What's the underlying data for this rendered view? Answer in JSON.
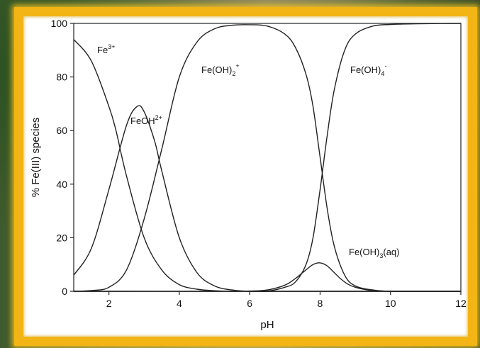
{
  "chart_data": {
    "type": "line",
    "title": "",
    "xlabel": "pH",
    "ylabel": "% Fe(III) species",
    "xlim": [
      1,
      12
    ],
    "ylim": [
      0,
      100
    ],
    "x_ticks": [
      2,
      4,
      6,
      8,
      10,
      12
    ],
    "y_ticks": [
      0,
      20,
      40,
      60,
      80,
      100
    ],
    "grid": false,
    "legend": "none",
    "series": [
      {
        "name": "Fe3+",
        "label_base": "Fe",
        "label_sup": "3+",
        "label_tail": "",
        "x": [
          1.0,
          1.5,
          2.0,
          2.2,
          2.5,
          3.0,
          3.5,
          4.0,
          4.5,
          5.0,
          5.5,
          6.0,
          7.0,
          8.0,
          9.0,
          10.0,
          11.0,
          12.0
        ],
        "y": [
          94,
          86,
          69,
          60,
          43,
          20,
          8,
          2.5,
          0.8,
          0.2,
          0,
          0,
          0,
          0,
          0,
          0,
          0,
          0
        ]
      },
      {
        "name": "FeOH2+",
        "label_base": "FeOH",
        "label_sup": "2+",
        "label_tail": "",
        "x": [
          1.0,
          1.5,
          2.0,
          2.5,
          2.8,
          3.0,
          3.3,
          3.5,
          4.0,
          4.5,
          5.0,
          5.5,
          6.0,
          7.0,
          8.0,
          9.0,
          10.0,
          11.0,
          12.0
        ],
        "y": [
          6,
          16,
          38,
          62,
          69,
          67,
          56,
          45,
          20,
          7,
          2,
          0.5,
          0,
          0,
          0,
          0,
          0,
          0,
          0
        ]
      },
      {
        "name": "Fe(OH)2+",
        "label_base": "Fe(OH)",
        "label_sub": "2",
        "label_sup": "+",
        "x": [
          1.0,
          1.5,
          2.0,
          2.5,
          3.0,
          3.5,
          4.0,
          4.5,
          5.0,
          5.5,
          6.0,
          6.5,
          7.0,
          7.3,
          7.6,
          7.8,
          8.0,
          8.2,
          8.4,
          8.7,
          9.0,
          9.5,
          10.0,
          11.0,
          12.0
        ],
        "y": [
          0,
          0.3,
          1.5,
          8,
          27,
          53,
          80,
          93,
          98,
          99.3,
          99.5,
          99,
          96,
          91,
          81,
          69,
          50,
          31,
          17,
          6,
          2,
          0.5,
          0,
          0,
          0
        ]
      },
      {
        "name": "Fe(OH)3(aq)",
        "label_base": "Fe(OH)",
        "label_sub": "3",
        "label_tail": "(aq)",
        "x": [
          1.0,
          5.0,
          6.0,
          6.5,
          7.0,
          7.3,
          7.6,
          7.8,
          8.0,
          8.2,
          8.4,
          8.6,
          8.8,
          9.0,
          9.3,
          9.6,
          10.0,
          11.0,
          12.0
        ],
        "y": [
          0,
          0,
          0.1,
          0.5,
          2.3,
          4.8,
          8,
          10,
          10.6,
          9.5,
          7,
          4.5,
          2.6,
          1.5,
          0.6,
          0.2,
          0,
          0,
          0
        ]
      },
      {
        "name": "Fe(OH)4-",
        "label_base": "Fe(OH)",
        "label_sub": "4",
        "label_sup": "-",
        "x": [
          1.0,
          6.0,
          6.5,
          7.0,
          7.3,
          7.6,
          7.8,
          8.0,
          8.2,
          8.4,
          8.7,
          9.0,
          9.5,
          10.0,
          10.5,
          11.0,
          12.0
        ],
        "y": [
          0,
          0,
          0.1,
          1.5,
          3.5,
          10,
          20,
          38,
          58,
          75,
          90,
          96,
          99,
          99.6,
          99.8,
          99.9,
          100
        ]
      }
    ]
  }
}
